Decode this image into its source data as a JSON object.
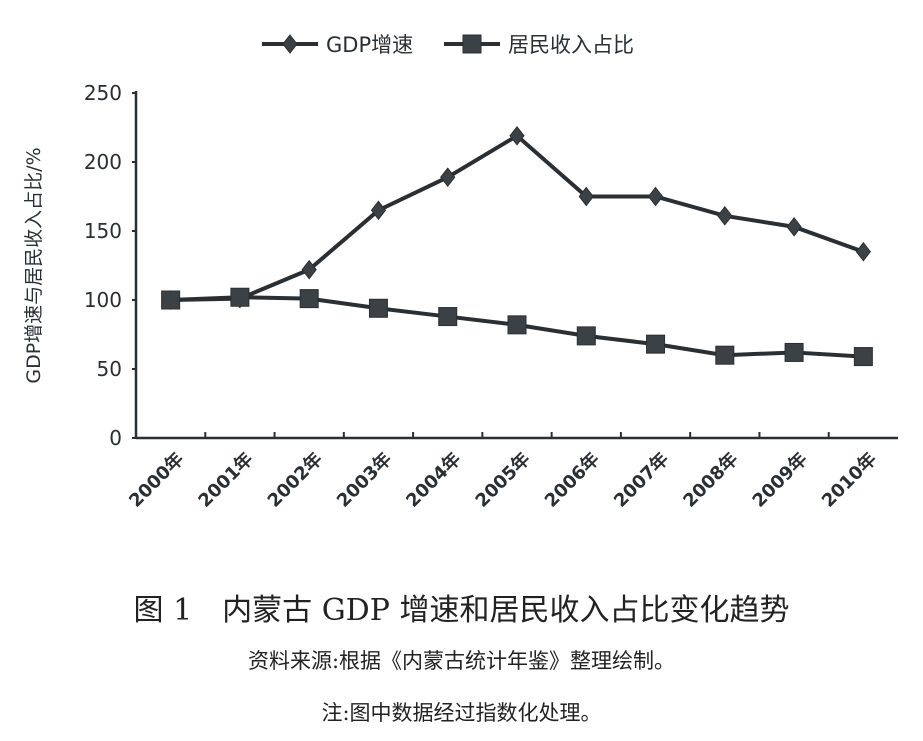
{
  "chart_data": {
    "type": "line",
    "title": "",
    "xlabel": "",
    "ylabel": "GDP增速与居民收入占比/%",
    "ylim": [
      0,
      250
    ],
    "yticks": [
      0,
      50,
      100,
      150,
      200,
      250
    ],
    "grid": false,
    "legend_position": "top",
    "categories": [
      "2000年",
      "2001年",
      "2002年",
      "2003年",
      "2004年",
      "2005年",
      "2006年",
      "2007年",
      "2008年",
      "2009年",
      "2010年"
    ],
    "series": [
      {
        "name": "GDP增速",
        "marker": "diamond",
        "color": "#2a2f33",
        "values": [
          100,
          101,
          122,
          165,
          189,
          219,
          175,
          175,
          161,
          153,
          135
        ]
      },
      {
        "name": "居民收入占比",
        "marker": "square",
        "color": "#2a2f33",
        "values": [
          100,
          102,
          101,
          94,
          88,
          82,
          74,
          68,
          60,
          62,
          59
        ]
      }
    ]
  },
  "caption": {
    "title": "图 1　内蒙古 GDP 增速和居民收入占比变化趋势",
    "source": "资料来源:根据《内蒙古统计年鉴》整理绘制。",
    "note": "注:图中数据经过指数化处理。"
  }
}
